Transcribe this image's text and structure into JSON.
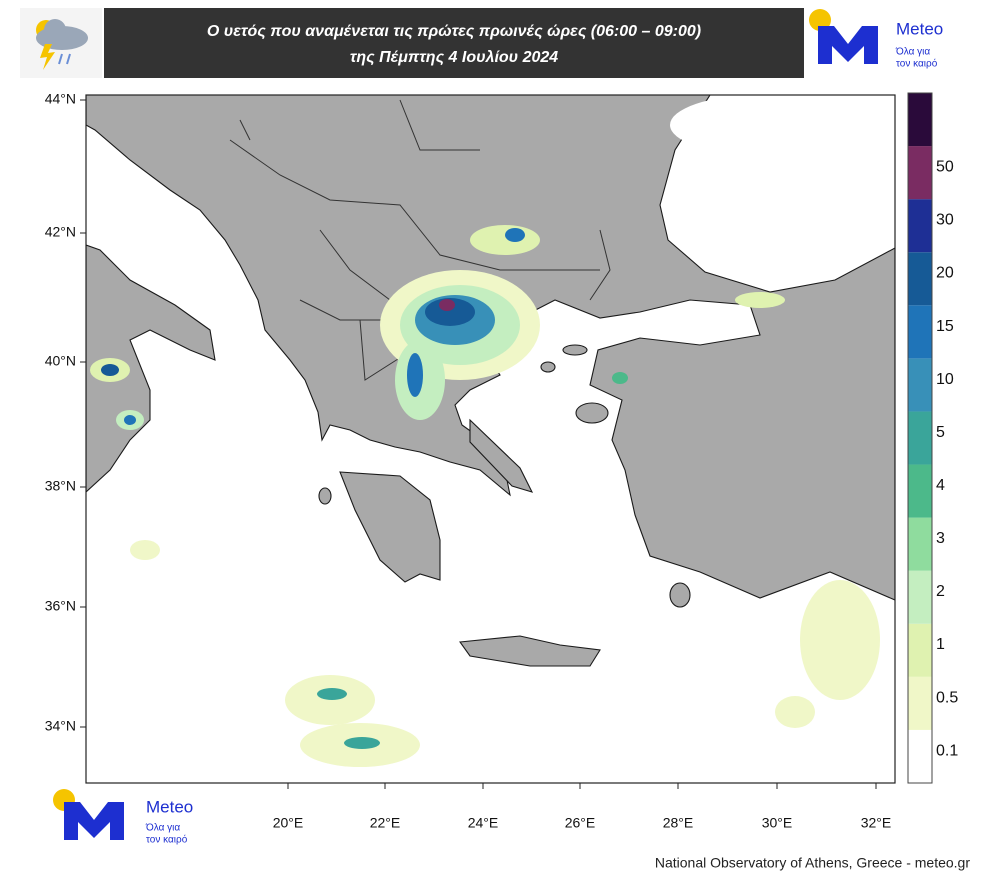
{
  "header": {
    "title_line1": "Ο υετός που αναμένεται τις πρώτες πρωινές ώρες (06:00 – 09:00)",
    "title_line2": "της Πέμπτης 4 Ιουλίου 2024"
  },
  "logo": {
    "name": "Meteo",
    "tagline_line1": "Όλα για",
    "tagline_line2": "τον καιρό"
  },
  "map": {
    "lat_labels": [
      "44°N",
      "42°N",
      "40°N",
      "38°N",
      "36°N",
      "34°N"
    ],
    "lon_labels": [
      "20°E",
      "22°E",
      "24°E",
      "26°E",
      "28°E",
      "30°E",
      "32°E"
    ]
  },
  "legend": {
    "labels": [
      0.1,
      0.5,
      1,
      2,
      3,
      4,
      5,
      10,
      15,
      20,
      30,
      50
    ],
    "colors": [
      "#ffffff",
      "#f0f7c8",
      "#dff2b0",
      "#c4eec0",
      "#8fdc9e",
      "#4cb98a",
      "#3aa59a",
      "#3890b8",
      "#1f74b8",
      "#165a96",
      "#1e2f95",
      "#7a2c62",
      "#2a0a3a"
    ]
  },
  "footer": {
    "credit": "National Observatory of Athens, Greece - meteo.gr"
  }
}
